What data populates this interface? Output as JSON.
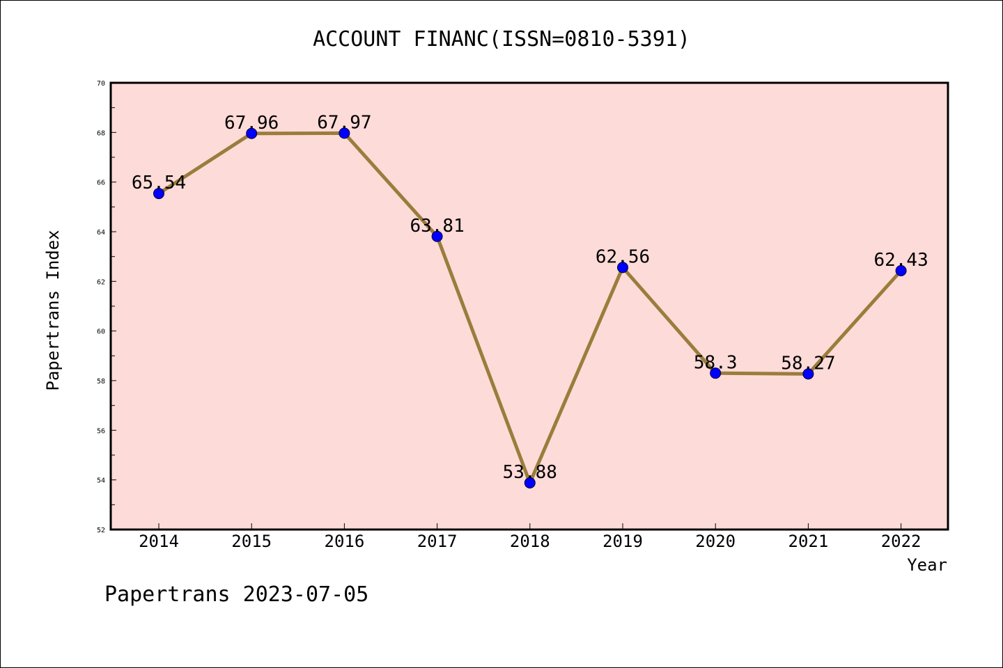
{
  "chart_data": {
    "type": "line",
    "title": "ACCOUNT FINANC(ISSN=0810-5391)",
    "xlabel": "Year",
    "ylabel": "Papertrans Index",
    "categories": [
      "2014",
      "2015",
      "2016",
      "2017",
      "2018",
      "2019",
      "2020",
      "2021",
      "2022"
    ],
    "values": [
      65.54,
      67.96,
      67.97,
      63.81,
      53.88,
      62.56,
      58.3,
      58.27,
      62.43
    ],
    "value_labels": [
      "65.54",
      "67.96",
      "67.97",
      "63.81",
      "53.88",
      "62.56",
      "58.3",
      "58.27",
      "62.43"
    ],
    "ylim": [
      52,
      70
    ],
    "yticks": [
      "52",
      "54",
      "56",
      "58",
      "60",
      "62",
      "64",
      "66",
      "68",
      "70"
    ],
    "grid": false,
    "colors": {
      "plot_background": "#fddbd8",
      "line": "#9a7d3c",
      "marker": "#0000ff"
    }
  },
  "footer": "Papertrans 2023-07-05"
}
